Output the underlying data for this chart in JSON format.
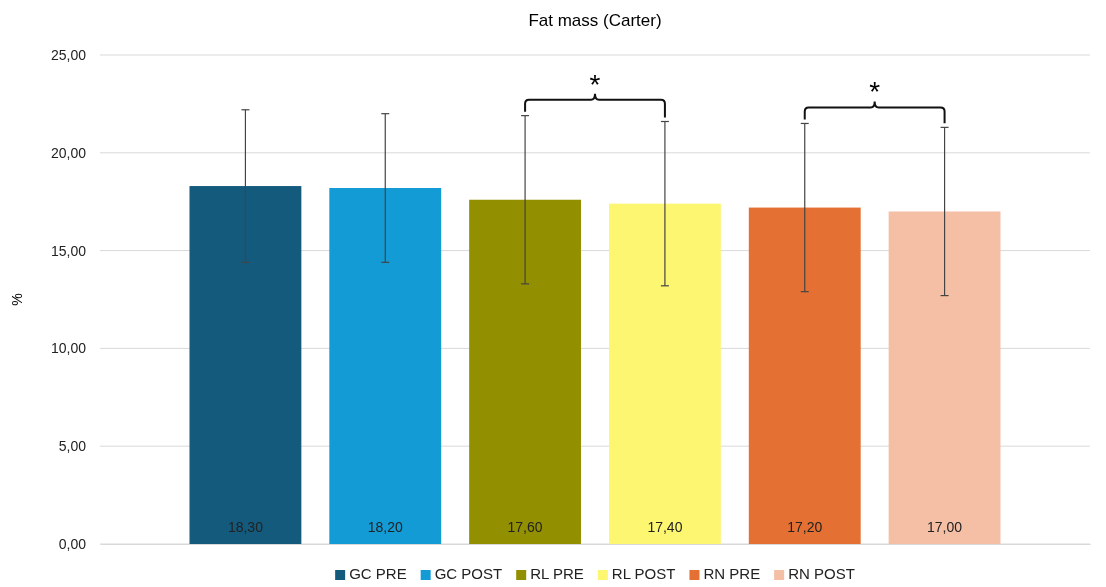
{
  "chart_data": {
    "type": "bar",
    "title": "Fat mass (Carter)",
    "ylabel": "%",
    "categories": [
      null
    ],
    "series": [
      {
        "name": "GC PRE",
        "color": "#135a7c",
        "values": [
          18.3
        ],
        "errors": [
          3.9
        ],
        "value_labels": [
          "18,30"
        ]
      },
      {
        "name": "GC POST",
        "color": "#139bd5",
        "values": [
          18.2
        ],
        "errors": [
          3.8
        ],
        "value_labels": [
          "18,20"
        ]
      },
      {
        "name": "RL PRE",
        "color": "#928f00",
        "values": [
          17.6
        ],
        "errors": [
          4.3
        ],
        "value_labels": [
          "17,60"
        ]
      },
      {
        "name": "RL POST",
        "color": "#fcf671",
        "values": [
          17.4
        ],
        "errors": [
          4.2
        ],
        "value_labels": [
          "17,40"
        ]
      },
      {
        "name": "RN PRE",
        "color": "#e57033",
        "values": [
          17.2
        ],
        "errors": [
          4.3
        ],
        "value_labels": [
          "17,20"
        ]
      },
      {
        "name": "RN POST",
        "color": "#f4bfa5",
        "values": [
          17.0
        ],
        "errors": [
          4.3
        ],
        "value_labels": [
          "17,00"
        ]
      }
    ],
    "ylim": [
      0,
      25
    ],
    "yticks": [
      {
        "value": 0,
        "label": "0,00"
      },
      {
        "value": 5,
        "label": "5,00"
      },
      {
        "value": 10,
        "label": "10,00"
      },
      {
        "value": 15,
        "label": "15,00"
      },
      {
        "value": 20,
        "label": "20,00"
      },
      {
        "value": 25,
        "label": "25,00"
      }
    ],
    "grid": "y",
    "legend": "bottom",
    "annotations": [
      "*",
      "*"
    ]
  }
}
